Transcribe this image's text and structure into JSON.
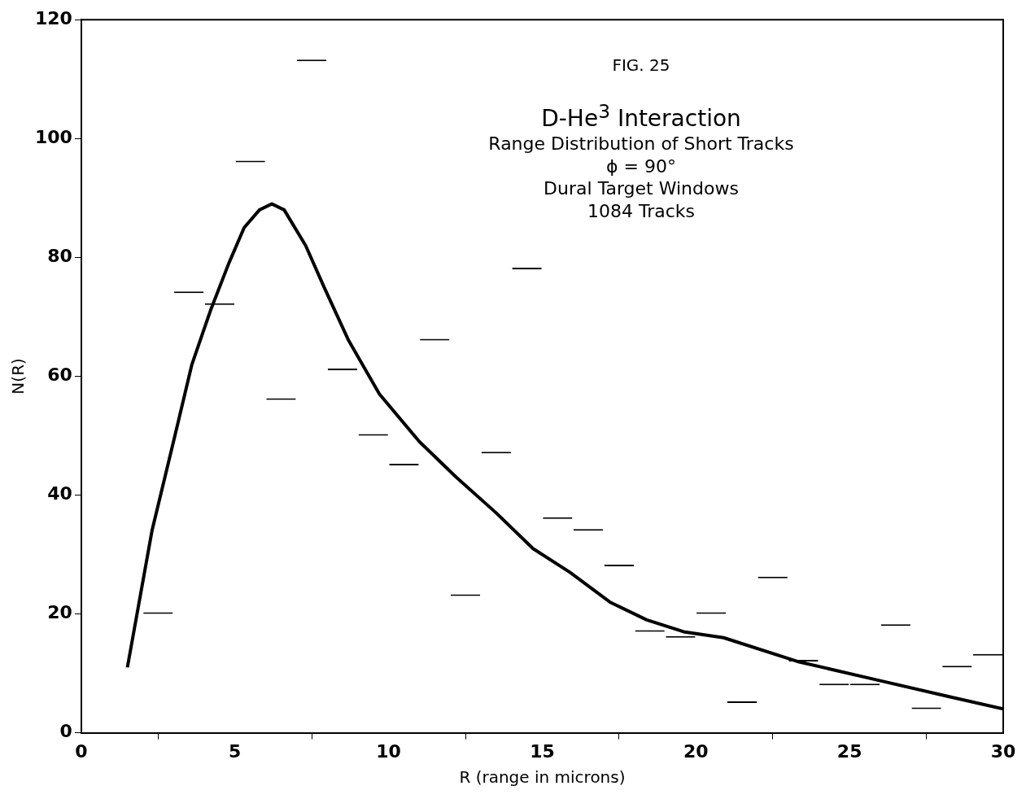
{
  "chart_data": {
    "type": "histogram",
    "title": "D-He$^{3}$ Interaction",
    "subtitle": "Range Distribution of Short Tracks",
    "annotations": [
      "FIG. 25",
      "ϕ = 90°",
      "Dural Target Windows",
      "1084 Tracks"
    ],
    "xlabel": "R (range in microns)",
    "ylabel": "N(R)",
    "bins": [
      2,
      3,
      4,
      5,
      6,
      7,
      8,
      9,
      10,
      11,
      12,
      13,
      14,
      15,
      16,
      17,
      18,
      19,
      20,
      21,
      22,
      23,
      24,
      25,
      26,
      27,
      28,
      29,
      30
    ],
    "values": [
      20,
      74,
      72,
      96,
      56,
      113,
      61,
      50,
      45,
      66,
      23,
      47,
      78,
      36,
      34,
      28,
      17,
      16,
      20,
      5,
      26,
      12,
      8,
      8,
      18,
      4,
      11,
      13
    ],
    "color": "#000000",
    "series": [
      {
        "type": "line",
        "color": "#000000",
        "x": [
          1.5,
          2.3,
          3.0,
          3.6,
          4.2,
          4.8,
          5.3,
          5.8,
          6.2,
          6.6,
          7.3,
          7.9,
          8.7,
          9.7,
          11.0,
          12.2,
          13.5,
          14.7,
          15.9,
          17.2,
          18.4,
          19.6,
          20.9,
          23.3,
          25.8,
          28.3,
          30
        ],
        "values": [
          11,
          34,
          49,
          62,
          71,
          79,
          85,
          88,
          89,
          88,
          82,
          75,
          66,
          57,
          49,
          43,
          37,
          31,
          27,
          22,
          19,
          17,
          16,
          12,
          9,
          6,
          4
        ]
      }
    ],
    "xlim": [
      0,
      30
    ],
    "xticks": [
      0,
      5,
      10,
      15,
      20,
      25,
      30
    ],
    "ylim": [
      0,
      120
    ],
    "yticks": [
      0,
      20,
      40,
      60,
      80,
      100,
      120
    ],
    "grid": false,
    "legend": false,
    "marker": "none",
    "line_style": "solid"
  }
}
